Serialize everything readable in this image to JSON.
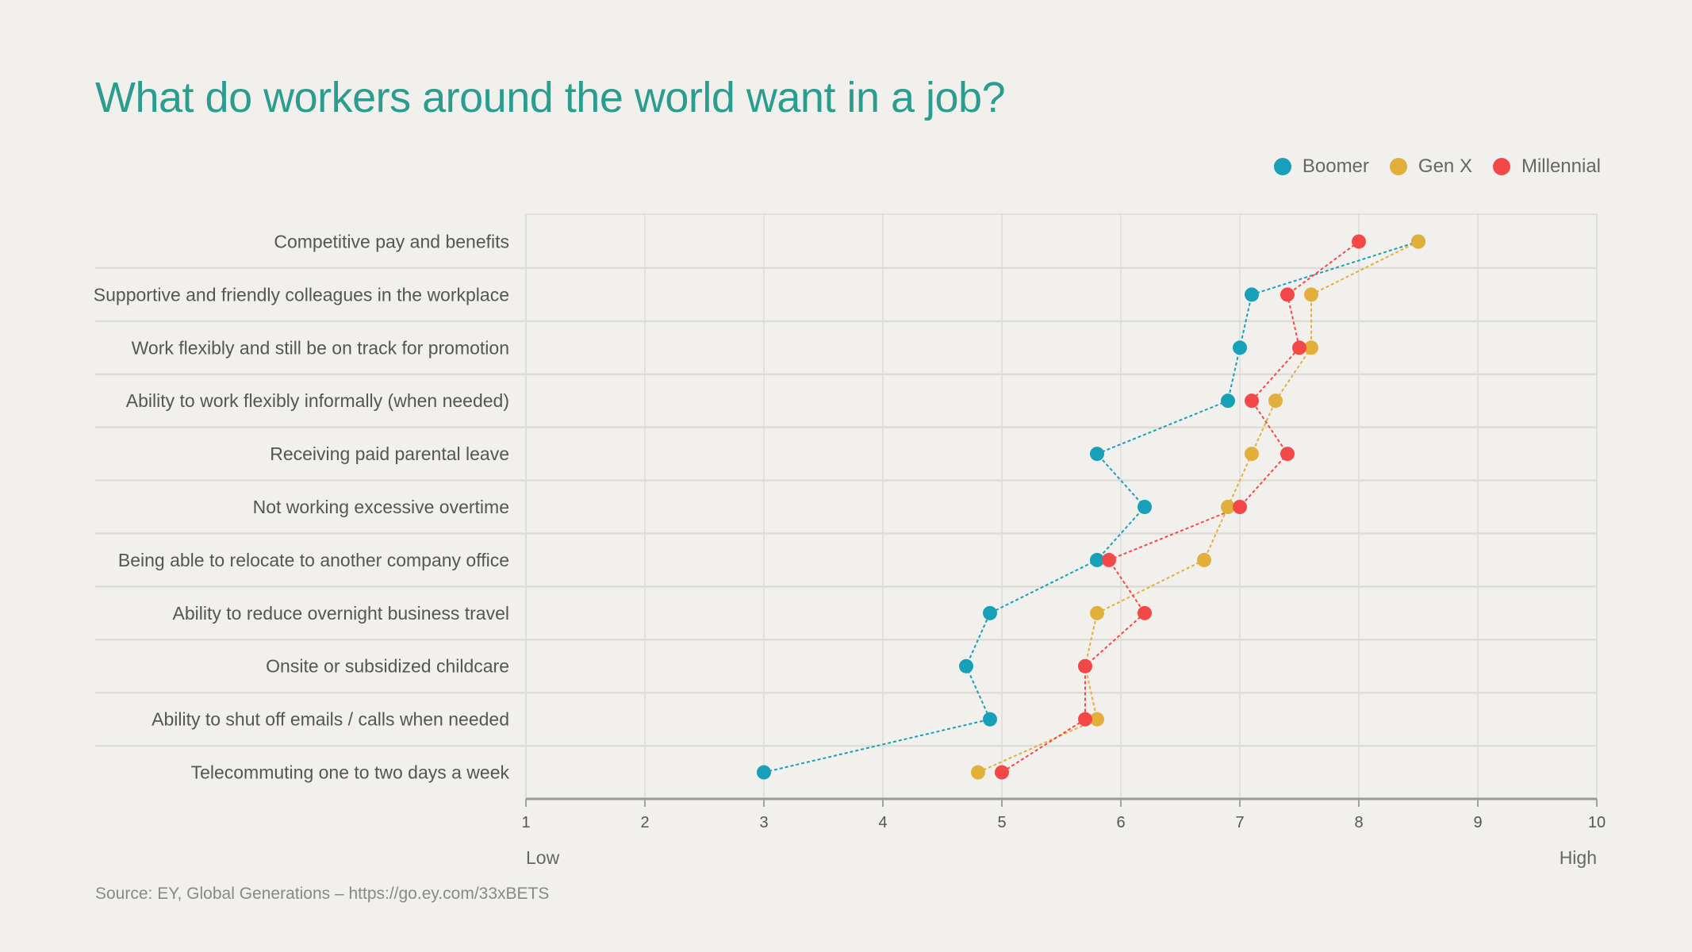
{
  "title": "What do workers around the world want in a job?",
  "source": "Source: EY, Global  Generations – https://go.ey.com/33xBETS",
  "chart_data": {
    "type": "dot-line",
    "title": "What do workers around the world want in a job?",
    "categories": [
      "Competitive pay and benefits",
      "Supportive and friendly colleagues in the workplace",
      "Work flexibly and still be on track for promotion",
      "Ability to work flexibly informally (when needed)",
      "Receiving paid parental leave",
      "Not working excessive overtime",
      "Being able to relocate to another company office",
      "Ability to reduce overnight business travel",
      "Onsite or subsidized childcare",
      "Ability to shut off emails / calls when needed",
      "Telecommuting one to two days a week"
    ],
    "series": [
      {
        "name": "Boomer",
        "color": "#17a0b8",
        "values": [
          8.5,
          7.1,
          7.0,
          6.9,
          5.8,
          6.2,
          5.8,
          4.9,
          4.7,
          4.9,
          3.0
        ]
      },
      {
        "name": "Gen X",
        "color": "#e2b03a",
        "values": [
          8.5,
          7.6,
          7.6,
          7.3,
          7.1,
          6.9,
          6.7,
          5.8,
          5.7,
          5.8,
          4.8
        ]
      },
      {
        "name": "Millennial",
        "color": "#f44848",
        "values": [
          8.0,
          7.4,
          7.5,
          7.1,
          7.4,
          7.0,
          5.9,
          6.2,
          5.7,
          5.7,
          5.0
        ]
      }
    ],
    "xlim": [
      1,
      10
    ],
    "xticks": [
      "1",
      "2",
      "3",
      "4",
      "5",
      "6",
      "7",
      "8",
      "9",
      "10"
    ],
    "x_low_label": "Low",
    "x_high_label": "High",
    "grid": true,
    "legend": "top-right"
  }
}
